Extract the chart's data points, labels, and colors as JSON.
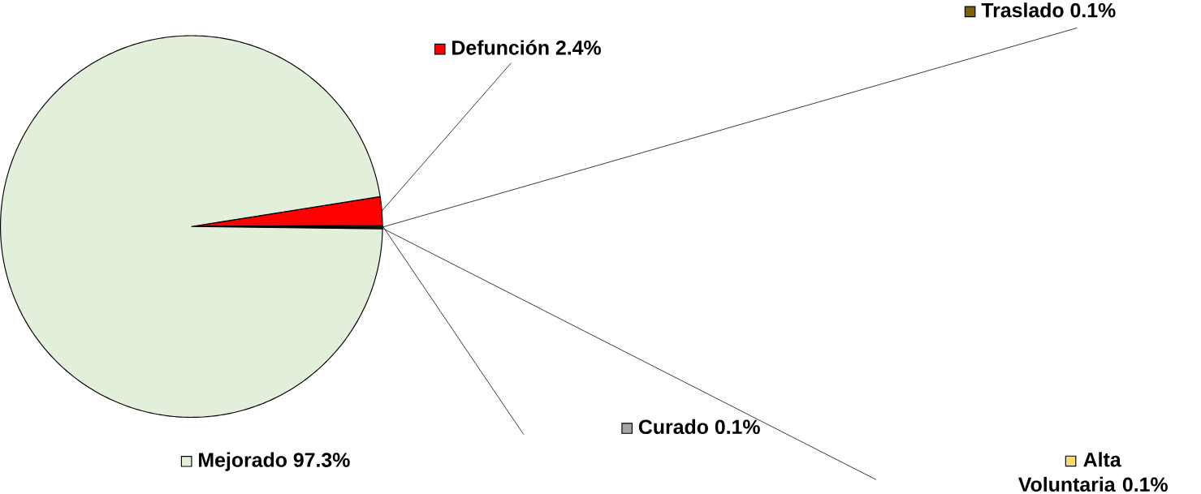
{
  "chart_data": {
    "type": "pie",
    "categories": [
      "Defunción",
      "Curado",
      "Traslado",
      "Alta Voluntaria",
      "Mejorado"
    ],
    "values": [
      2.4,
      0.1,
      0.1,
      0.1,
      97.3
    ],
    "value_labels": [
      "2.4%",
      "0.1%",
      "0.1%",
      "0.1%",
      "97.3%"
    ],
    "colors": [
      "#ff0000",
      "#a6a6a6",
      "#7f6000",
      "#ffd966",
      "#e2efda"
    ],
    "legend": "right"
  }
}
